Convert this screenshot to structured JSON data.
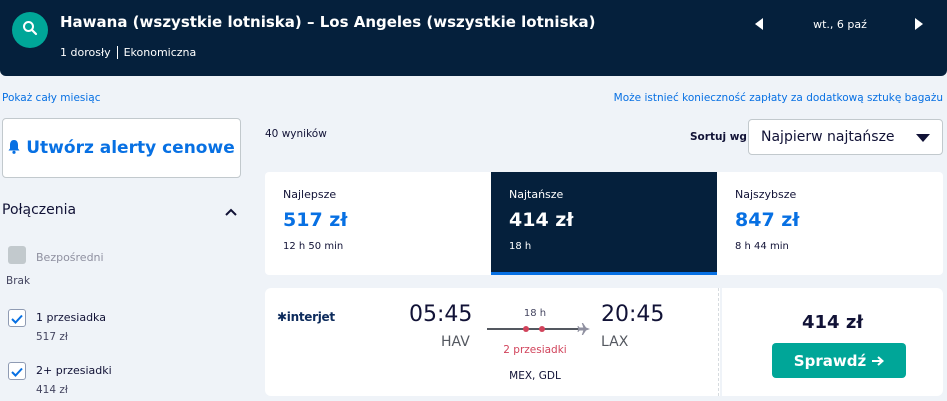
{
  "header": {
    "route_title": "Hawana (wszystkie lotniska) – Los Angeles (wszystkie lotniska)",
    "passengers": "1 dorosły",
    "cabin": "Ekonomiczna",
    "date": "wt., 6 paź",
    "icons": {
      "search": "search-icon",
      "prev": "chevron-left-icon",
      "next": "chevron-right-icon"
    }
  },
  "links": {
    "whole_month": "Pokaż cały miesiąc",
    "baggage": "Może istnieć konieczność zapłaty za dodatkową sztukę bagażu"
  },
  "sidebar": {
    "alert_button": "Utwórz alerty cenowe",
    "connections_title": "Połączenia",
    "filters": [
      {
        "label": "Bezpośredni",
        "price": "Brak",
        "checked": false,
        "disabled": true
      },
      {
        "label": "1 przesiadka",
        "price": "517 zł",
        "checked": true,
        "disabled": false
      },
      {
        "label": "2+ przesiadki",
        "price": "414 zł",
        "checked": true,
        "disabled": false
      }
    ]
  },
  "results": {
    "count": "40 wyników",
    "sort_label": "Sortuj wg",
    "sort_value": "Najpierw najtańsze"
  },
  "tabs": [
    {
      "label": "Najlepsze",
      "price": "517 zł",
      "duration": "12 h 50 min",
      "active": false
    },
    {
      "label": "Najtańsze",
      "price": "414 zł",
      "duration": "18 h",
      "active": true
    },
    {
      "label": "Najszybsze",
      "price": "847 zł",
      "duration": "8 h 44 min",
      "active": false
    }
  ],
  "flight": {
    "airline": "interjet",
    "departure_time": "05:45",
    "departure_code": "HAV",
    "arrival_time": "20:45",
    "arrival_code": "LAX",
    "duration": "18 h",
    "stops": "2 przesiadki",
    "stop_codes": "MEX, GDL",
    "price": "414 zł",
    "button": "Sprawdź"
  },
  "colors": {
    "header_bg": "#05203c",
    "accent": "#0770e3",
    "teal": "#00a698",
    "stops": "#d1435b"
  }
}
